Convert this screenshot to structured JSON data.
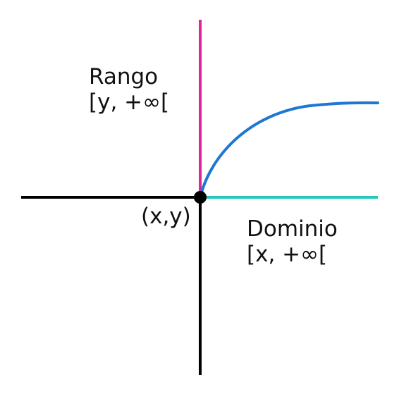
{
  "labels": {
    "rango_title": "Rango",
    "rango_interval": "[y, +∞[",
    "dominio_title": "Dominio",
    "dominio_interval": "[x, +∞[",
    "point": "(x,y)"
  },
  "colors": {
    "axes": "#000000",
    "range_line": "#e0249c",
    "domain_line": "#22c9b8",
    "curve": "#1f77d4",
    "point": "#000000"
  }
}
